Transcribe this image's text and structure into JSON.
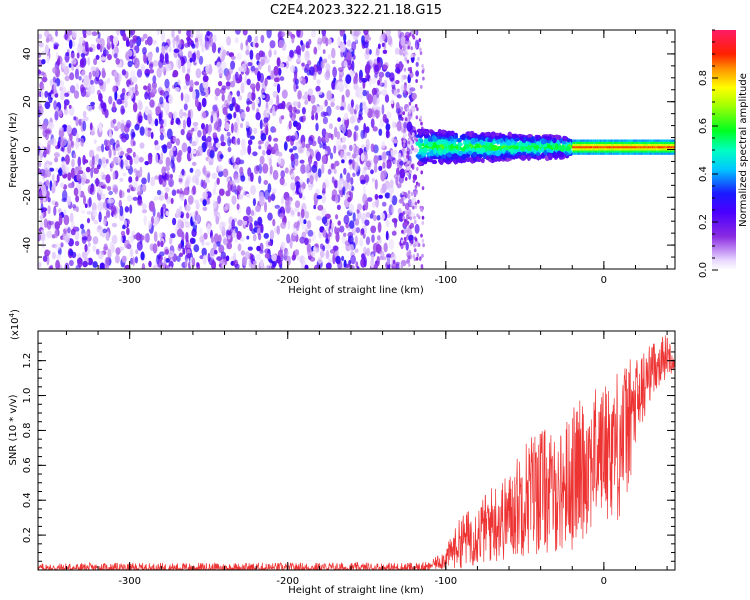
{
  "title": "C2E4.2023.322.21.18.G15",
  "chart_data": [
    {
      "type": "heatmap",
      "xlabel": "Height of straight line (km)",
      "ylabel": "Frequency (Hz)",
      "xlim": [
        -358,
        45
      ],
      "ylim": [
        -50,
        50
      ],
      "xticks": [
        -300,
        -200,
        -100,
        0
      ],
      "yticks": [
        -40,
        -20,
        0,
        20,
        40
      ],
      "colorbar": {
        "label": "Normalized spectral amplitude",
        "range": [
          0,
          1
        ],
        "ticks": [
          0.0,
          0.2,
          0.4,
          0.6,
          0.8
        ],
        "colormap": [
          "#f5f0ff",
          "#7b1fff",
          "#1a1aff",
          "#00d8ff",
          "#00ff40",
          "#ffff00",
          "#ff7f00",
          "#ff0000",
          "#ff1493"
        ]
      },
      "regions": [
        {
          "x": [
            -358,
            -118
          ],
          "freq": [
            -50,
            50
          ],
          "amplitude": [
            0.0,
            0.3
          ],
          "note_color": "#7b1fff"
        },
        {
          "x": [
            -118,
            -20
          ],
          "freq": [
            -7,
            7
          ],
          "amplitude": [
            0.3,
            0.6
          ]
        },
        {
          "x": [
            -20,
            45
          ],
          "freq": [
            -2,
            4
          ],
          "amplitude": [
            0.4,
            0.95
          ]
        }
      ]
    },
    {
      "type": "line",
      "xlabel": "Height of straight line (km)",
      "ylabel": "SNR (10 * v/v)",
      "yscale_label": "(x10",
      "yscale_exp": "4",
      "xlim": [
        -358,
        45
      ],
      "ylim": [
        0,
        13700
      ],
      "xticks": [
        -300,
        -200,
        -100,
        0
      ],
      "yticks": [
        0.2,
        0.4,
        0.6,
        0.8,
        1.0,
        1.2
      ],
      "series_color": "#ee3333",
      "envelope": {
        "x": [
          -358,
          -110,
          -100,
          -90,
          -80,
          -70,
          -60,
          -50,
          -40,
          -30,
          -20,
          -10,
          0,
          10,
          20,
          30,
          40,
          45
        ],
        "low": [
          0,
          0,
          0,
          100,
          200,
          300,
          500,
          700,
          800,
          900,
          1000,
          2000,
          3000,
          2500,
          6000,
          10000,
          11000,
          11500
        ],
        "high": [
          400,
          450,
          1300,
          3200,
          3800,
          5000,
          5500,
          7600,
          8400,
          7500,
          9400,
          10200,
          10700,
          11800,
          12300,
          13000,
          13600,
          12000
        ]
      }
    }
  ]
}
